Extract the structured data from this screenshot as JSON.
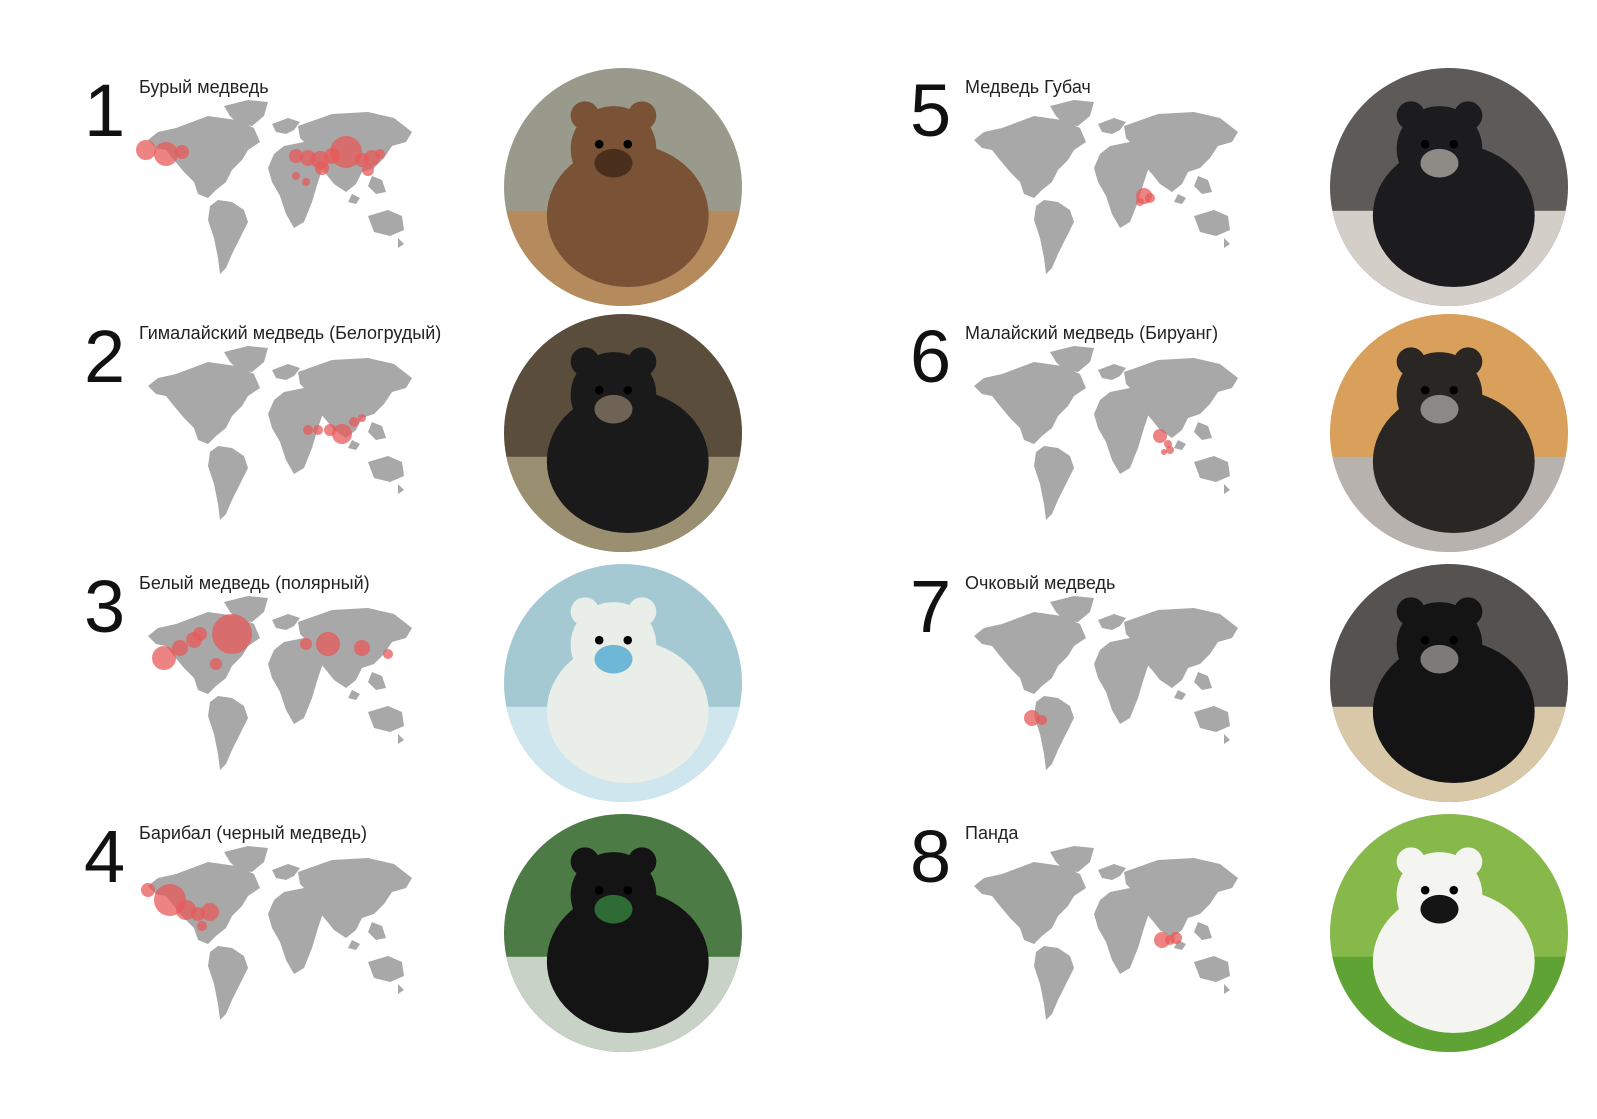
{
  "colors": {
    "map_land": "#a8a8a8",
    "range_marker": "#e85a5a",
    "text": "#222222"
  },
  "entries": [
    {
      "num": "1",
      "title": "Бурый медведь",
      "photo_icon": "brown-bear-photo",
      "photo_colors": [
        "#7a5236",
        "#4a2f1c",
        "#b58a5c",
        "#9a9a8c"
      ]
    },
    {
      "num": "2",
      "title": "Гималайский медведь (Белогрудый)",
      "photo_icon": "asiatic-black-bear-photo",
      "photo_colors": [
        "#1a1a1a",
        "#6e6354",
        "#9b8f72",
        "#5a4d3c"
      ]
    },
    {
      "num": "3",
      "title": "Белый медведь (полярный)",
      "photo_icon": "polar-bear-photo",
      "photo_colors": [
        "#e9eee8",
        "#6fb7d6",
        "#cfe6ef",
        "#a4c9d3"
      ]
    },
    {
      "num": "4",
      "title": "Барибал (черный медведь)",
      "photo_icon": "american-black-bear-photo",
      "photo_colors": [
        "#141414",
        "#2f6b34",
        "#c9d2c6",
        "#4c7b45"
      ]
    },
    {
      "num": "5",
      "title": "Медведь Губач",
      "photo_icon": "sloth-bear-photo",
      "photo_colors": [
        "#1c1b1d",
        "#8e8a86",
        "#d3cfc8",
        "#5d5a57"
      ]
    },
    {
      "num": "6",
      "title": "Малайский медведь (Бируанг)",
      "photo_icon": "sun-bear-photo",
      "photo_colors": [
        "#2a2624",
        "#8c8886",
        "#b7b2ae",
        "#d9a05b"
      ]
    },
    {
      "num": "7",
      "title": "Очковый медведь",
      "photo_icon": "spectacled-bear-photo",
      "photo_colors": [
        "#141414",
        "#7d7a77",
        "#d8c8a8",
        "#56524f"
      ]
    },
    {
      "num": "8",
      "title": "Панда",
      "photo_icon": "panda-photo",
      "photo_colors": [
        "#f4f4f0",
        "#151515",
        "#5fa335",
        "#86b84a"
      ]
    }
  ]
}
